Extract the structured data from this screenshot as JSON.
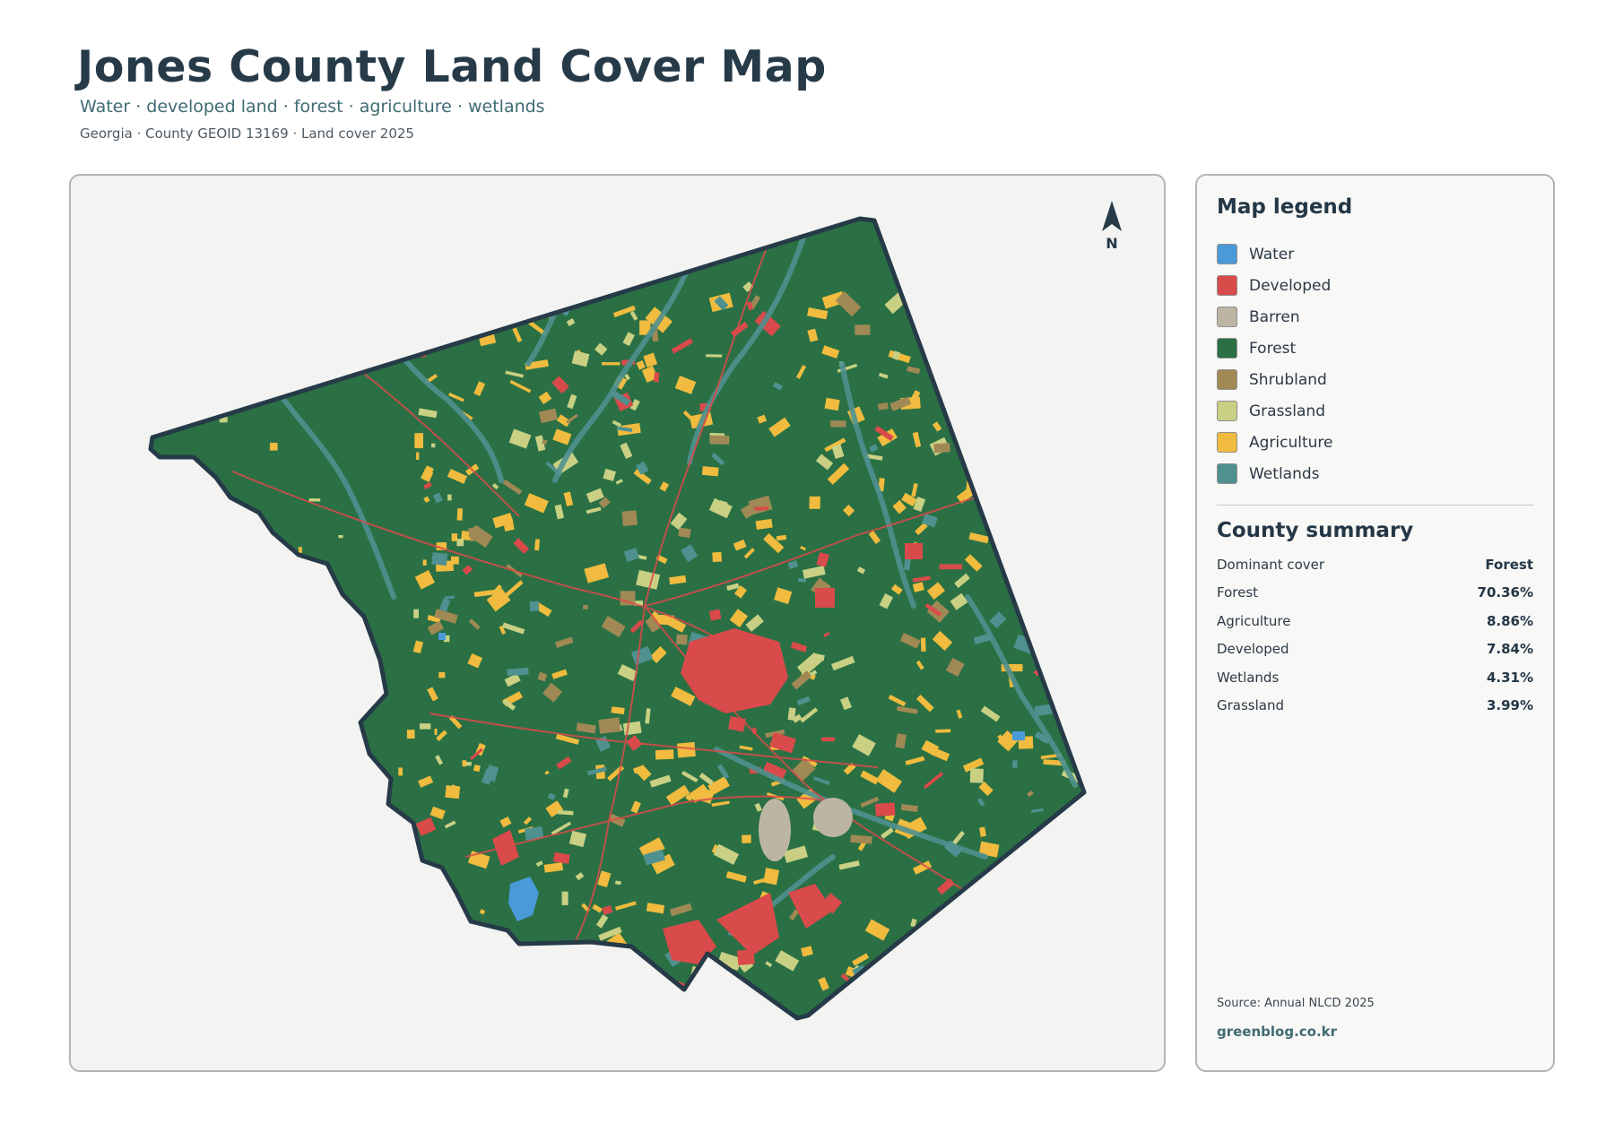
{
  "header": {
    "title": "Jones County Land Cover Map",
    "subtitle": "Water · developed land · forest · agriculture · wetlands",
    "meta": "Georgia · County GEOID 13169 · Land cover 2025"
  },
  "map": {
    "north_label": "N",
    "colors": {
      "background": "#f3f3f2",
      "outline": "#263a48",
      "water": "#4a9ad9",
      "developed": "#d94a4a",
      "barren": "#bdb5a3",
      "forest": "#2a7044",
      "shrubland": "#a08955",
      "grassland": "#c9d084",
      "agriculture": "#f0bb3e",
      "wetlands": "#4f9190"
    }
  },
  "legend": {
    "title": "Map legend",
    "items": [
      {
        "label": "Water",
        "color": "#4a9ad9"
      },
      {
        "label": "Developed",
        "color": "#d94a4a"
      },
      {
        "label": "Barren",
        "color": "#bdb5a3"
      },
      {
        "label": "Forest",
        "color": "#2a7044"
      },
      {
        "label": "Shrubland",
        "color": "#a08955"
      },
      {
        "label": "Grassland",
        "color": "#c9d084"
      },
      {
        "label": "Agriculture",
        "color": "#f0bb3e"
      },
      {
        "label": "Wetlands",
        "color": "#4f9190"
      }
    ]
  },
  "summary": {
    "title": "County summary",
    "rows": [
      {
        "label": "Dominant cover",
        "value": "Forest"
      },
      {
        "label": "Forest",
        "value": "70.36%"
      },
      {
        "label": "Agriculture",
        "value": "8.86%"
      },
      {
        "label": "Developed",
        "value": "7.84%"
      },
      {
        "label": "Wetlands",
        "value": "4.31%"
      },
      {
        "label": "Grassland",
        "value": "3.99%"
      }
    ]
  },
  "footer": {
    "source": "Source: Annual NLCD 2025",
    "site": "greenblog.co.kr"
  }
}
